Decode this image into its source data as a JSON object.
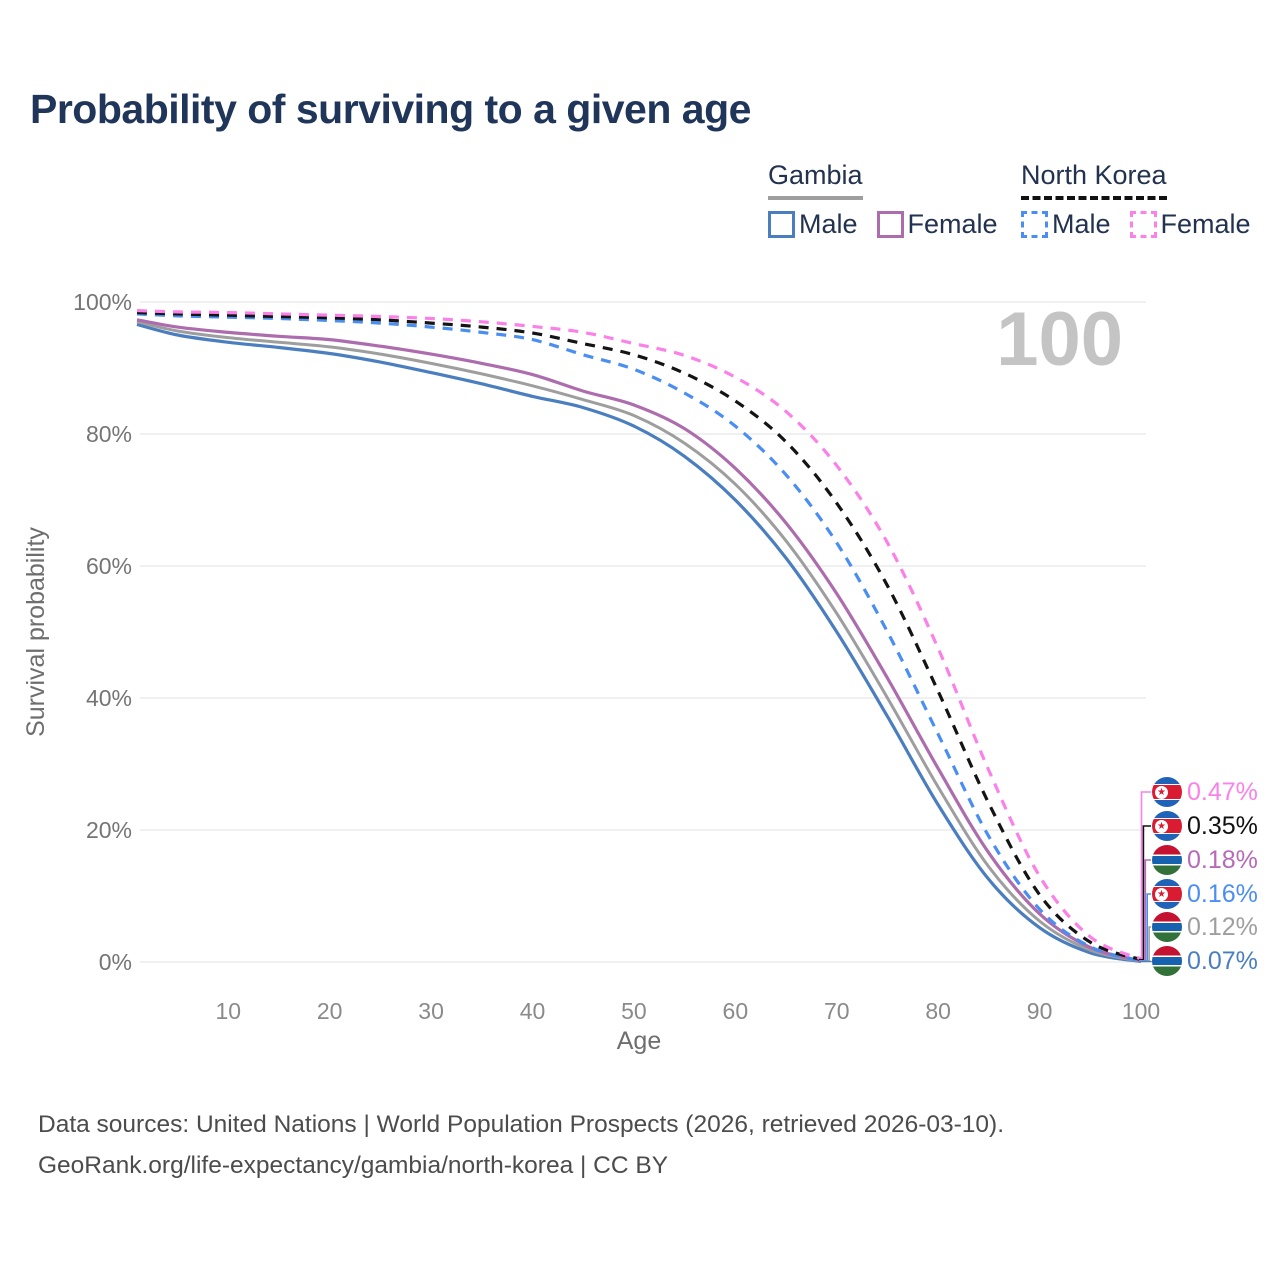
{
  "header": {
    "title": "Probability of surviving to a given age"
  },
  "legend": {
    "groups": [
      {
        "label": "Gambia",
        "underline_style": "solid",
        "underline_color": "#9e9e9e",
        "items": [
          {
            "label": "Male",
            "color": "#4a7ebf",
            "dashed": false
          },
          {
            "label": "Female",
            "color": "#ad6cad",
            "dashed": false
          }
        ]
      },
      {
        "label": "North Korea",
        "underline_style": "dashed",
        "underline_color": "#111111",
        "items": [
          {
            "label": "Male",
            "color": "#4b8ef2",
            "dashed": true
          },
          {
            "label": "Female",
            "color": "#fb80e8",
            "dashed": true
          }
        ]
      }
    ]
  },
  "chart_data": {
    "type": "line",
    "title": "Probability of surviving to a given age",
    "xlabel": "Age",
    "ylabel": "Survival probability",
    "xlim": [
      1,
      100
    ],
    "ylim": [
      0,
      100
    ],
    "grid": "horizontal",
    "legend_position": "top-right",
    "age_counter_watermark": "100",
    "x_ticks": [
      10,
      20,
      30,
      40,
      50,
      60,
      70,
      80,
      90,
      100
    ],
    "y_ticks": [
      {
        "value": 0,
        "label": "0%"
      },
      {
        "value": 20,
        "label": "20%"
      },
      {
        "value": 40,
        "label": "40%"
      },
      {
        "value": 60,
        "label": "60%"
      },
      {
        "value": 80,
        "label": "80%"
      },
      {
        "value": 100,
        "label": "100%"
      }
    ],
    "ages": [
      1,
      5,
      10,
      15,
      20,
      25,
      30,
      35,
      40,
      45,
      50,
      55,
      60,
      65,
      70,
      75,
      80,
      85,
      90,
      95,
      100
    ],
    "series": [
      {
        "id": "gambia_male",
        "name": "Gambia Male",
        "country": "Gambia",
        "sex": "Male",
        "color": "#4a7ebf",
        "dash": "solid",
        "end_label": "0.07%",
        "values": [
          96.6,
          95.0,
          93.9,
          93.1,
          92.2,
          90.9,
          89.3,
          87.6,
          85.7,
          84.0,
          81.2,
          76.6,
          70.0,
          61.2,
          50.0,
          37.2,
          23.8,
          12.5,
          5.2,
          1.4,
          0.07
        ]
      },
      {
        "id": "gambia_all",
        "name": "Gambia",
        "country": "Gambia",
        "sex": "Both",
        "color": "#9e9e9e",
        "dash": "solid",
        "end_label": "0.12%",
        "values": [
          97.0,
          95.6,
          94.6,
          93.9,
          93.2,
          92.1,
          90.7,
          89.1,
          87.3,
          85.2,
          82.8,
          78.6,
          72.4,
          63.8,
          52.8,
          40.0,
          26.5,
          14.4,
          6.2,
          1.8,
          0.12
        ]
      },
      {
        "id": "gambia_female",
        "name": "Gambia Female",
        "country": "Gambia",
        "sex": "Female",
        "color": "#ad6cad",
        "dash": "solid",
        "end_label": "0.18%",
        "values": [
          97.3,
          96.2,
          95.4,
          94.8,
          94.3,
          93.3,
          92.1,
          90.7,
          89.0,
          86.5,
          84.4,
          80.8,
          74.8,
          66.5,
          55.8,
          43.0,
          29.3,
          16.5,
          7.3,
          2.2,
          0.18
        ]
      },
      {
        "id": "nk_male",
        "name": "North Korea Male",
        "country": "North Korea",
        "sex": "Male",
        "color": "#4b8ef2",
        "dash": "dashed",
        "end_label": "0.16%",
        "values": [
          98.2,
          97.9,
          97.7,
          97.5,
          97.2,
          96.8,
          96.2,
          95.4,
          94.3,
          92.0,
          89.8,
          86.2,
          81.2,
          73.8,
          63.5,
          50.0,
          34.5,
          19.0,
          8.0,
          2.3,
          0.16
        ]
      },
      {
        "id": "nk_all",
        "name": "North Korea",
        "country": "North Korea",
        "sex": "Both",
        "color": "#141414",
        "dash": "dashed",
        "end_label": "0.35%",
        "values": [
          98.4,
          98.2,
          98.0,
          97.8,
          97.6,
          97.3,
          96.8,
          96.2,
          95.3,
          93.7,
          92.0,
          89.2,
          85.0,
          78.8,
          69.5,
          57.0,
          41.0,
          24.0,
          10.2,
          3.0,
          0.35
        ]
      },
      {
        "id": "nk_female",
        "name": "North Korea Female",
        "country": "North Korea",
        "sex": "Female",
        "color": "#fb80e8",
        "dash": "dashed",
        "end_label": "0.47%",
        "values": [
          98.7,
          98.5,
          98.4,
          98.2,
          98.0,
          97.8,
          97.5,
          97.0,
          96.3,
          95.4,
          93.7,
          91.9,
          88.6,
          83.4,
          75.2,
          63.5,
          47.5,
          29.0,
          13.0,
          3.8,
          0.47
        ]
      }
    ],
    "end_labels": [
      {
        "text": "0.47%",
        "color": "#fb80e8",
        "flag": "nk",
        "series": "nk_female"
      },
      {
        "text": "0.35%",
        "color": "#111111",
        "flag": "nk",
        "series": "nk_all"
      },
      {
        "text": "0.18%",
        "color": "#b76ab8",
        "flag": "gambia",
        "series": "gambia_female"
      },
      {
        "text": "0.16%",
        "color": "#4b8ef2",
        "flag": "nk",
        "series": "nk_male"
      },
      {
        "text": "0.12%",
        "color": "#9e9e9e",
        "flag": "gambia",
        "series": "gambia_all"
      },
      {
        "text": "0.07%",
        "color": "#4a7ebf",
        "flag": "gambia",
        "series": "gambia_male"
      }
    ]
  },
  "footer": {
    "line1": "Data sources: United Nations | World Population Prospects (2026, retrieved 2026-03-10).",
    "line2": "GeoRank.org/life-expectancy/gambia/north-korea | CC BY"
  }
}
